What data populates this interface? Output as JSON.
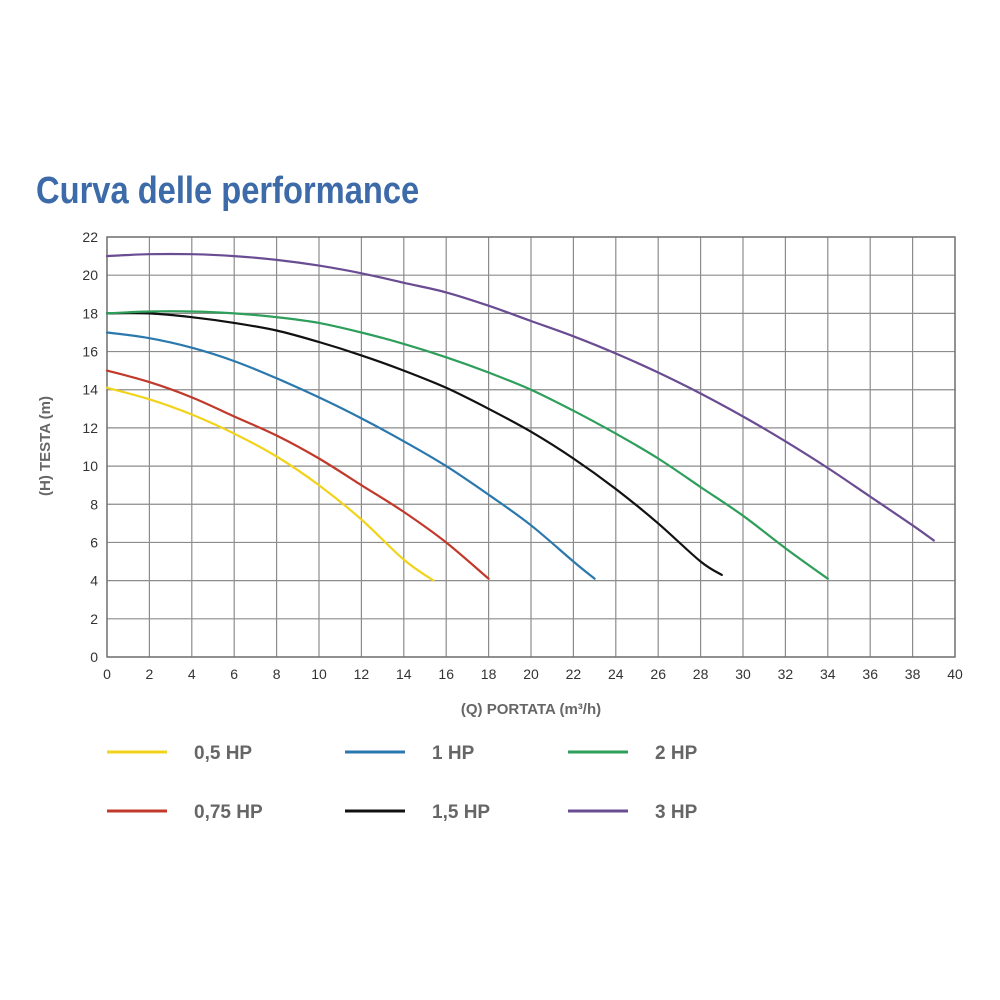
{
  "chart_data": {
    "type": "line",
    "title": "Curva delle performance",
    "xlabel": "(Q) PORTATA (m³/h)",
    "ylabel": "(H) TESTA (m)",
    "xlim": [
      0,
      40
    ],
    "ylim": [
      0,
      22
    ],
    "xticks": [
      0,
      2,
      4,
      6,
      8,
      10,
      12,
      14,
      16,
      18,
      20,
      22,
      24,
      26,
      28,
      30,
      32,
      34,
      36,
      38,
      40
    ],
    "yticks": [
      0,
      2,
      4,
      6,
      8,
      10,
      12,
      14,
      16,
      18,
      20,
      22
    ],
    "grid": true,
    "legend_position": "bottom",
    "series": [
      {
        "name": "0,5 HP",
        "color": "#f2d31c",
        "x": [
          0,
          2,
          4,
          6,
          8,
          10,
          12,
          14,
          15.4
        ],
        "y": [
          14.1,
          13.5,
          12.7,
          11.7,
          10.5,
          9.0,
          7.2,
          5.1,
          4.0
        ]
      },
      {
        "name": "0,75 HP",
        "color": "#c0392b",
        "x": [
          0,
          2,
          4,
          6,
          8,
          10,
          12,
          14,
          16,
          18
        ],
        "y": [
          15.0,
          14.4,
          13.6,
          12.6,
          11.6,
          10.4,
          9.0,
          7.6,
          6.0,
          4.1
        ]
      },
      {
        "name": "1 HP",
        "color": "#2a78ad",
        "x": [
          0,
          2,
          4,
          6,
          8,
          10,
          12,
          14,
          16,
          18,
          20,
          22,
          23
        ],
        "y": [
          17.0,
          16.7,
          16.2,
          15.5,
          14.6,
          13.6,
          12.5,
          11.3,
          10.0,
          8.5,
          6.9,
          5.0,
          4.1
        ]
      },
      {
        "name": "1,5 HP",
        "color": "#111111",
        "x": [
          0,
          2,
          4,
          6,
          8,
          10,
          12,
          14,
          16,
          18,
          20,
          22,
          24,
          26,
          28,
          29
        ],
        "y": [
          18.0,
          18.0,
          17.8,
          17.5,
          17.1,
          16.5,
          15.8,
          15.0,
          14.1,
          13.0,
          11.8,
          10.4,
          8.8,
          7.0,
          5.0,
          4.3
        ]
      },
      {
        "name": "2 HP",
        "color": "#2e9e5b",
        "x": [
          0,
          2,
          4,
          6,
          8,
          10,
          12,
          14,
          16,
          18,
          20,
          22,
          24,
          26,
          28,
          30,
          32,
          34
        ],
        "y": [
          18.0,
          18.1,
          18.1,
          18.0,
          17.8,
          17.5,
          17.0,
          16.4,
          15.7,
          14.9,
          14.0,
          12.9,
          11.7,
          10.4,
          8.9,
          7.4,
          5.7,
          4.1
        ]
      },
      {
        "name": "3 HP",
        "color": "#6a4c93",
        "x": [
          0,
          2,
          4,
          6,
          8,
          10,
          12,
          14,
          16,
          18,
          20,
          22,
          24,
          26,
          28,
          30,
          32,
          34,
          36,
          38,
          39
        ],
        "y": [
          21.0,
          21.1,
          21.1,
          21.0,
          20.8,
          20.5,
          20.1,
          19.6,
          19.1,
          18.4,
          17.6,
          16.8,
          15.9,
          14.9,
          13.8,
          12.6,
          11.3,
          9.9,
          8.4,
          6.9,
          6.1
        ]
      }
    ]
  }
}
